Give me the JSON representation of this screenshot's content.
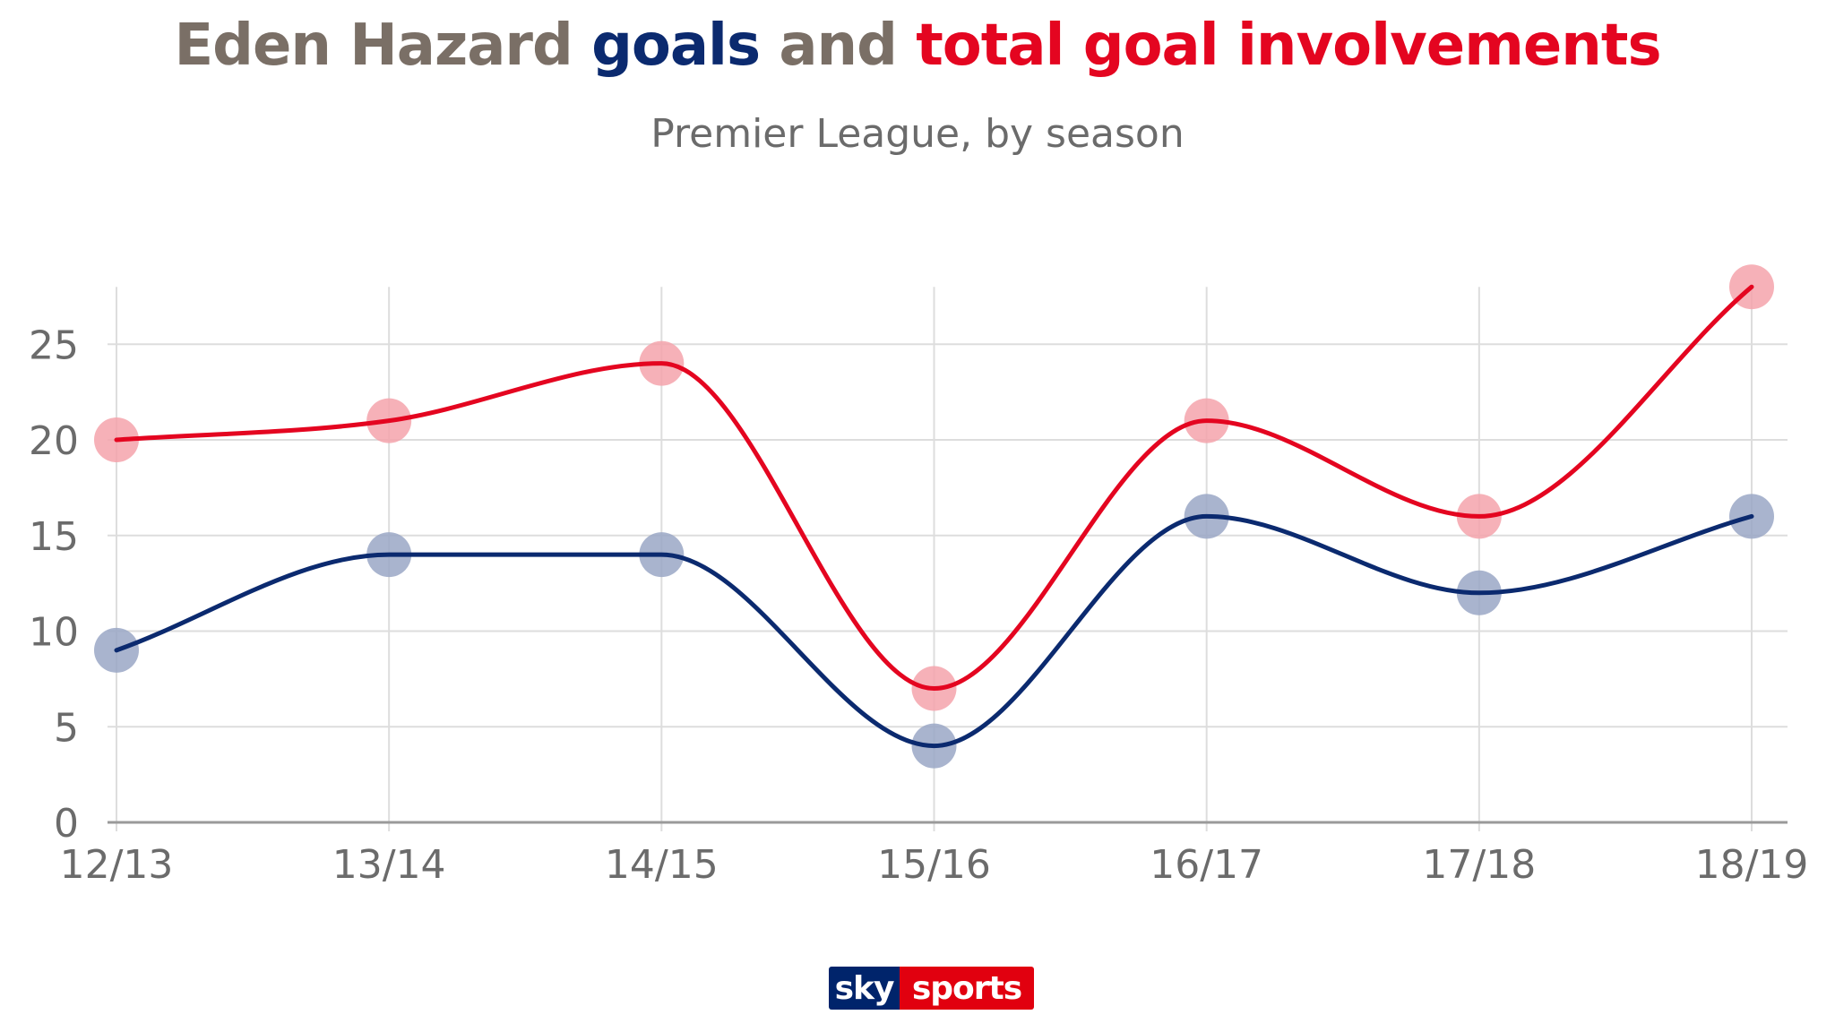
{
  "header": {
    "title_part1": "Eden Hazard ",
    "title_part2": "goals",
    "title_part3": " and ",
    "title_part4": "total goal involvements",
    "subtitle": "Premier League, by season"
  },
  "colors": {
    "title_gray": "#7a6f66",
    "goals": "#0b2a6f",
    "involvements": "#e40520",
    "goals_marker": "#9aa7c6",
    "involvements_marker": "#f5a3ac",
    "grid": "#dddddd",
    "axis": "#9a9a9a",
    "tick_text": "#6b6b6b"
  },
  "chart_data": {
    "type": "line",
    "title": "Eden Hazard goals and total goal involvements",
    "subtitle": "Premier League, by season",
    "xlabel": "",
    "ylabel": "",
    "categories": [
      "12/13",
      "13/14",
      "14/15",
      "15/16",
      "16/17",
      "17/18",
      "18/19"
    ],
    "ylim": [
      0,
      28
    ],
    "yticks": [
      0,
      5,
      10,
      15,
      20,
      25
    ],
    "grid": true,
    "series": [
      {
        "name": "goals",
        "values": [
          9,
          14,
          14,
          4,
          16,
          12,
          16
        ]
      },
      {
        "name": "total goal involvements",
        "values": [
          20,
          21,
          24,
          7,
          21,
          16,
          28
        ]
      }
    ]
  },
  "logo": {
    "left": "sky",
    "right": "sports"
  }
}
